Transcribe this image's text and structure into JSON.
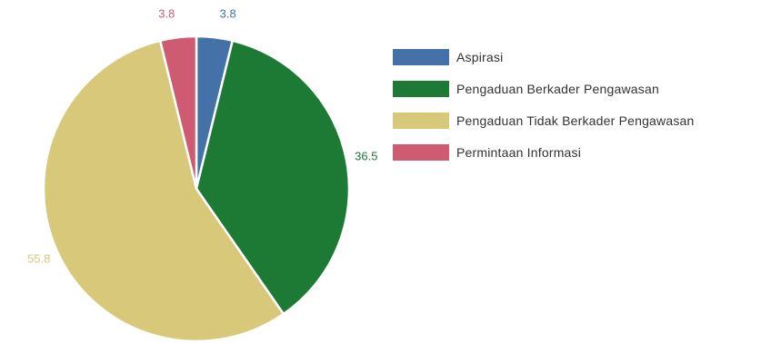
{
  "chart_data": {
    "type": "pie",
    "slices": [
      {
        "label": "Aspirasi",
        "value": 3.8,
        "display": "3.8",
        "color": "#4472a8"
      },
      {
        "label": "Pengaduan Berkader Pengawasan",
        "value": 36.5,
        "display": "36.5",
        "color": "#1c7a35"
      },
      {
        "label": "Pengaduan Tidak Berkader Pengawasan",
        "value": 55.8,
        "display": "55.8",
        "color": "#d8c97a"
      },
      {
        "label": "Permintaan Informasi",
        "value": 3.8,
        "display": "3.8",
        "color": "#cf5b72"
      }
    ],
    "start_angle_deg": 0,
    "direction": "clockwise",
    "legend_position": "right"
  }
}
